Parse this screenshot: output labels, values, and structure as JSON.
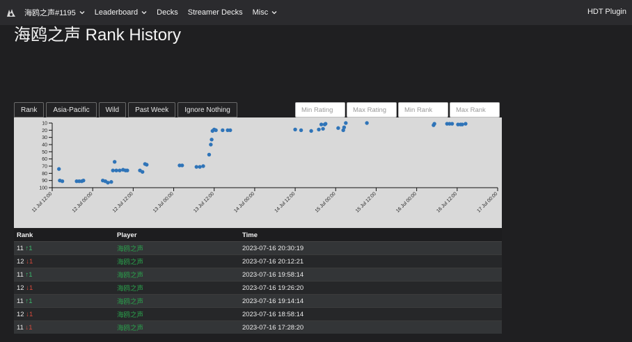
{
  "nav": {
    "player": "海鸥之声#1195",
    "leaderboard": "Leaderboard",
    "decks": "Decks",
    "streamer_decks": "Streamer Decks",
    "misc": "Misc",
    "hdt_plugin": "HDT Plugin"
  },
  "page": {
    "title": "海鸥之声 Rank History"
  },
  "tabs": [
    {
      "label": "Rank"
    },
    {
      "label": "Asia-Pacific"
    },
    {
      "label": "Wild"
    },
    {
      "label": "Past Week"
    },
    {
      "label": "Ignore Nothing"
    }
  ],
  "filters": {
    "min_rating": "Min Rating",
    "max_rating": "Max Rating",
    "min_rank": "Min Rank",
    "max_rank": "Max Rank"
  },
  "chart_data": {
    "type": "scatter",
    "color": "#2f74b8",
    "y_ticks": [
      10,
      20,
      30,
      40,
      50,
      60,
      70,
      80,
      90,
      100
    ],
    "y_range": [
      100,
      10
    ],
    "y_reversed": true,
    "x_ticks": [
      "11 Jul 12:00",
      "12 Jul 00:00",
      "12 Jul 12:00",
      "13 Jul 00:00",
      "13 Jul 12:00",
      "14 Jul 00:00",
      "14 Jul 12:00",
      "15 Jul 00:00",
      "15 Jul 12:00",
      "16 Jul 00:00",
      "16 Jul 12:00",
      "17 Jul 00:00"
    ],
    "x_start": "2023-07-11 12:00",
    "x_end": "2023-07-17 00:00",
    "points": [
      {
        "x": "2023-07-11 14:00",
        "y": 74
      },
      {
        "x": "2023-07-11 14:15",
        "y": 90
      },
      {
        "x": "2023-07-11 15:00",
        "y": 91
      },
      {
        "x": "2023-07-11 19:15",
        "y": 91
      },
      {
        "x": "2023-07-11 20:00",
        "y": 91
      },
      {
        "x": "2023-07-11 20:45",
        "y": 91
      },
      {
        "x": "2023-07-11 21:15",
        "y": 90
      },
      {
        "x": "2023-07-12 03:00",
        "y": 90
      },
      {
        "x": "2023-07-12 03:45",
        "y": 91
      },
      {
        "x": "2023-07-12 04:30",
        "y": 93
      },
      {
        "x": "2023-07-12 05:30",
        "y": 92
      },
      {
        "x": "2023-07-12 06:00",
        "y": 76
      },
      {
        "x": "2023-07-12 06:30",
        "y": 64
      },
      {
        "x": "2023-07-12 07:00",
        "y": 76
      },
      {
        "x": "2023-07-12 08:00",
        "y": 76
      },
      {
        "x": "2023-07-12 09:00",
        "y": 75
      },
      {
        "x": "2023-07-12 09:45",
        "y": 76
      },
      {
        "x": "2023-07-12 10:15",
        "y": 76
      },
      {
        "x": "2023-07-12 14:00",
        "y": 76
      },
      {
        "x": "2023-07-12 14:45",
        "y": 78
      },
      {
        "x": "2023-07-12 15:30",
        "y": 67
      },
      {
        "x": "2023-07-12 16:00",
        "y": 68
      },
      {
        "x": "2023-07-13 01:45",
        "y": 69
      },
      {
        "x": "2023-07-13 02:30",
        "y": 69
      },
      {
        "x": "2023-07-13 06:45",
        "y": 71
      },
      {
        "x": "2023-07-13 07:45",
        "y": 71
      },
      {
        "x": "2023-07-13 08:45",
        "y": 70
      },
      {
        "x": "2023-07-13 10:30",
        "y": 54
      },
      {
        "x": "2023-07-13 11:00",
        "y": 40
      },
      {
        "x": "2023-07-13 11:15",
        "y": 33
      },
      {
        "x": "2023-07-13 11:30",
        "y": 21
      },
      {
        "x": "2023-07-13 12:00",
        "y": 19
      },
      {
        "x": "2023-07-13 12:30",
        "y": 20
      },
      {
        "x": "2023-07-13 14:30",
        "y": 20
      },
      {
        "x": "2023-07-13 16:00",
        "y": 20
      },
      {
        "x": "2023-07-13 16:45",
        "y": 20
      },
      {
        "x": "2023-07-14 12:00",
        "y": 19
      },
      {
        "x": "2023-07-14 13:45",
        "y": 20
      },
      {
        "x": "2023-07-14 16:45",
        "y": 21
      },
      {
        "x": "2023-07-14 19:00",
        "y": 19
      },
      {
        "x": "2023-07-14 19:45",
        "y": 12
      },
      {
        "x": "2023-07-14 20:15",
        "y": 18
      },
      {
        "x": "2023-07-14 20:45",
        "y": 12
      },
      {
        "x": "2023-07-14 21:00",
        "y": 11
      },
      {
        "x": "2023-07-15 00:45",
        "y": 17
      },
      {
        "x": "2023-07-15 02:15",
        "y": 20
      },
      {
        "x": "2023-07-15 02:30",
        "y": 16
      },
      {
        "x": "2023-07-15 03:00",
        "y": 10
      },
      {
        "x": "2023-07-15 09:15",
        "y": 10
      },
      {
        "x": "2023-07-16 05:00",
        "y": 13
      },
      {
        "x": "2023-07-16 05:15",
        "y": 11
      },
      {
        "x": "2023-07-16 09:00",
        "y": 11
      },
      {
        "x": "2023-07-16 09:45",
        "y": 11
      },
      {
        "x": "2023-07-16 10:30",
        "y": 11
      },
      {
        "x": "2023-07-16 12:15",
        "y": 12
      },
      {
        "x": "2023-07-16 13:00",
        "y": 12
      },
      {
        "x": "2023-07-16 13:30",
        "y": 12
      },
      {
        "x": "2023-07-16 14:30",
        "y": 11
      }
    ]
  },
  "table": {
    "headers": {
      "rank": "Rank",
      "player": "Player",
      "time": "Time"
    },
    "rows": [
      {
        "rank": "11",
        "arrow": "↑1",
        "dir": "up",
        "player": "海鸥之声",
        "time": "2023-07-16 20:30:19"
      },
      {
        "rank": "12",
        "arrow": "↓1",
        "dir": "down",
        "player": "海鸥之声",
        "time": "2023-07-16 20:12:21"
      },
      {
        "rank": "11",
        "arrow": "↑1",
        "dir": "up",
        "player": "海鸥之声",
        "time": "2023-07-16 19:58:14"
      },
      {
        "rank": "12",
        "arrow": "↓1",
        "dir": "down",
        "player": "海鸥之声",
        "time": "2023-07-16 19:26:20"
      },
      {
        "rank": "11",
        "arrow": "↑1",
        "dir": "up",
        "player": "海鸥之声",
        "time": "2023-07-16 19:14:14"
      },
      {
        "rank": "12",
        "arrow": "↓1",
        "dir": "down",
        "player": "海鸥之声",
        "time": "2023-07-16 18:58:14"
      },
      {
        "rank": "11",
        "arrow": "↓1",
        "dir": "down",
        "player": "海鸥之声",
        "time": "2023-07-16 17:28:20"
      }
    ]
  }
}
